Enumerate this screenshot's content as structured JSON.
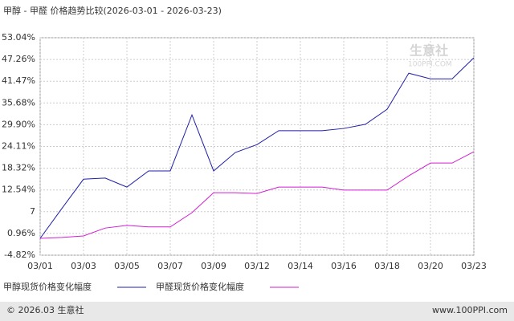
{
  "chart_data": {
    "type": "line",
    "title": "甲醇 - 甲醛 价格趋势比较(2026-03-01 - 2026-03-23)",
    "categories": [
      "03/01",
      null,
      "03/03",
      null,
      "03/05",
      null,
      "03/07",
      null,
      "03/09",
      null,
      "03/12",
      null,
      "03/14",
      null,
      "03/16",
      null,
      "03/18",
      null,
      "03/20",
      null,
      "03/23"
    ],
    "series": [
      {
        "name": "甲醇现货价格变化幅度",
        "color": "#1f1fa8",
        "values": [
          -0.34,
          7.6,
          15.4,
          15.7,
          13.3,
          17.6,
          17.6,
          32.5,
          17.6,
          22.5,
          24.6,
          28.3,
          28.3,
          28.3,
          28.9,
          30.0,
          34.0,
          43.6,
          42.1,
          42.1,
          47.7
        ]
      },
      {
        "name": "甲醛现货价格变化幅度",
        "color": "#d21ed2",
        "values": [
          -0.34,
          -0.1,
          0.3,
          2.4,
          3.1,
          2.7,
          2.7,
          6.5,
          11.8,
          11.8,
          11.6,
          13.3,
          13.3,
          13.3,
          12.5,
          12.5,
          12.5,
          16.3,
          19.7,
          19.7,
          22.7
        ]
      }
    ],
    "ylim": [
      -4.82,
      53.04
    ],
    "yticks": [
      {
        "value": -4.82,
        "label": "-4.82%"
      },
      {
        "value": 0.96,
        "label": "0.96%"
      },
      {
        "value": 6.75,
        "label": "7"
      },
      {
        "value": 12.54,
        "label": "12.54%"
      },
      {
        "value": 18.32,
        "label": "18.32%"
      },
      {
        "value": 24.11,
        "label": "24.11%"
      },
      {
        "value": 29.9,
        "label": "29.90%"
      },
      {
        "value": 35.68,
        "label": "35.68%"
      },
      {
        "value": 41.47,
        "label": "41.47%"
      },
      {
        "value": 47.26,
        "label": "47.26%"
      },
      {
        "value": 53.04,
        "label": "53.04%"
      }
    ],
    "grid": true,
    "watermark": [
      "生意社",
      "100PPI.COM"
    ],
    "footer": [
      "© 2026.03 生意社",
      "www.100PPI.com"
    ]
  }
}
